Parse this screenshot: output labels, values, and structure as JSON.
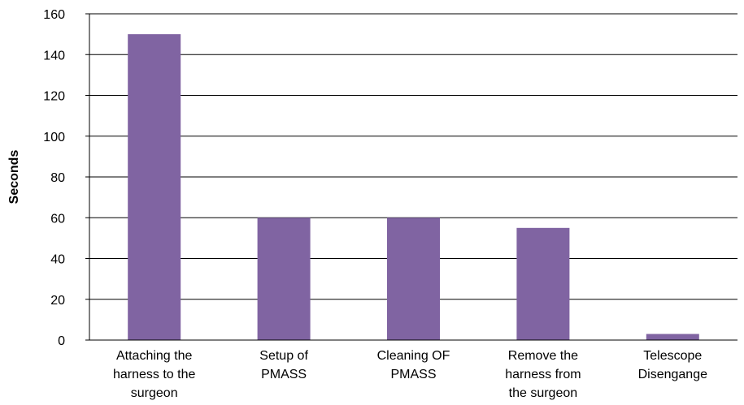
{
  "chart_data": {
    "type": "bar",
    "categories": [
      [
        "Attaching the",
        "harness to the",
        "surgeon"
      ],
      [
        "Setup of",
        "PMASS"
      ],
      [
        "Cleaning OF",
        "PMASS"
      ],
      [
        "Remove the",
        "harness from",
        "the surgeon"
      ],
      [
        "Telescope",
        "Disengange"
      ]
    ],
    "values": [
      150,
      60,
      60,
      55,
      3
    ],
    "ylabel": "Seconds",
    "xlabel": "",
    "ylim": [
      0,
      160
    ],
    "yticks": [
      0,
      20,
      40,
      60,
      80,
      100,
      120,
      140,
      160
    ],
    "grid": true,
    "bar_color": "#8064a2",
    "legend": "none"
  }
}
